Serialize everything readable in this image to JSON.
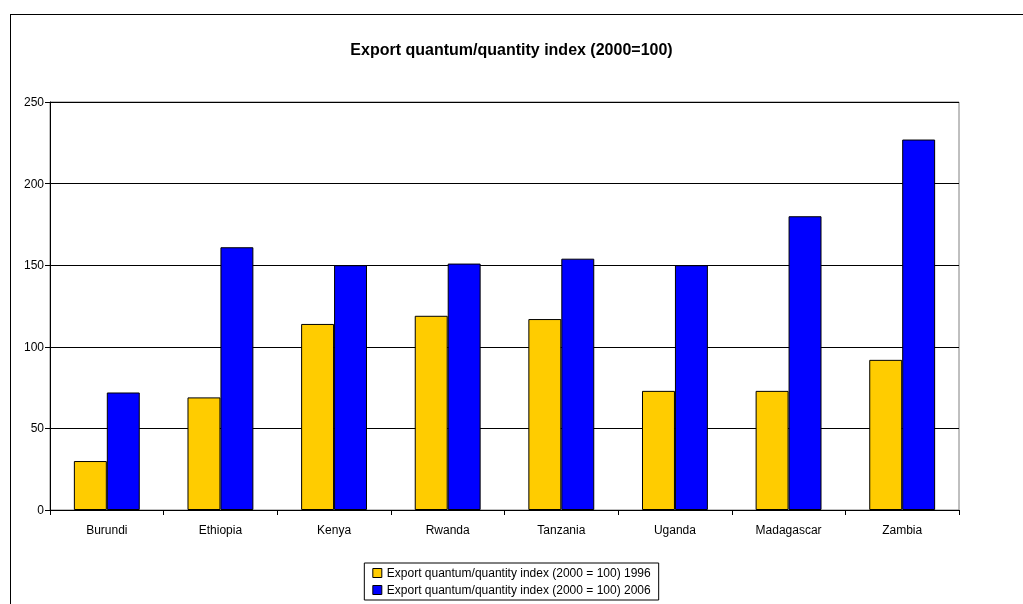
{
  "chart_data": {
    "type": "bar",
    "title": "Export quantum/quantity index (2000=100)",
    "categories": [
      "Burundi",
      "Ethiopia",
      "Kenya",
      "Rwanda",
      "Tanzania",
      "Uganda",
      "Madagascar",
      "Zambia"
    ],
    "series": [
      {
        "name": "Export quantum/quantity index (2000 = 100) 1996",
        "color": "#ffcc00",
        "values": [
          30,
          69,
          114,
          119,
          117,
          73,
          73,
          92
        ]
      },
      {
        "name": "Export quantum/quantity index (2000 = 100) 2006",
        "color": "#0000ff",
        "values": [
          72,
          161,
          150,
          151,
          154,
          150,
          180,
          227
        ]
      }
    ],
    "ylim": [
      0,
      250
    ],
    "yticks": [
      0,
      50,
      100,
      150,
      200,
      250
    ],
    "grid": "y",
    "legend": "bottom"
  }
}
